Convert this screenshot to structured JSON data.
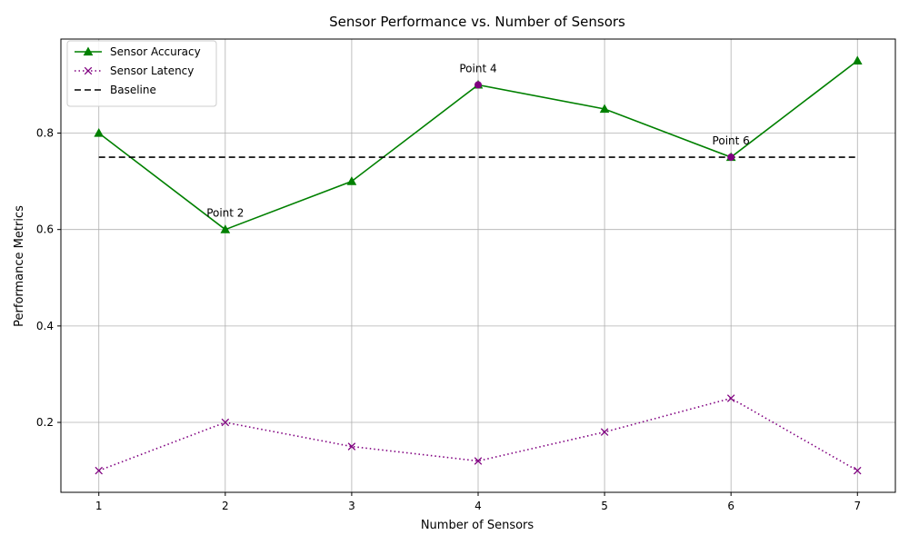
{
  "chart_data": {
    "type": "line",
    "title": "Sensor Performance vs. Number of Sensors",
    "xlabel": "Number of Sensors",
    "ylabel": "Performance Metrics",
    "x": [
      1,
      2,
      3,
      4,
      5,
      6,
      7
    ],
    "xlim": [
      0.7,
      7.3
    ],
    "ylim": [
      0.055,
      0.995
    ],
    "xticks": [
      "1",
      "2",
      "3",
      "4",
      "5",
      "6",
      "7"
    ],
    "yticks": [
      "0.2",
      "0.4",
      "0.6",
      "0.8"
    ],
    "ytick_values": [
      0.2,
      0.4,
      0.6,
      0.8
    ],
    "grid": true,
    "legend_position": "top-left",
    "series": [
      {
        "name": "Sensor Accuracy",
        "values": [
          0.8,
          0.6,
          0.7,
          0.9,
          0.85,
          0.75,
          0.95
        ],
        "color": "#008000",
        "line_style": "solid",
        "marker": "triangle"
      },
      {
        "name": "Sensor Latency",
        "values": [
          0.1,
          0.2,
          0.15,
          0.12,
          0.18,
          0.25,
          0.1
        ],
        "color": "#800080",
        "line_style": "dotted",
        "marker": "x"
      },
      {
        "name": "Baseline",
        "values": [
          0.75,
          0.75,
          0.75,
          0.75,
          0.75,
          0.75,
          0.75
        ],
        "color": "#000000",
        "line_style": "dashed",
        "marker": "none"
      }
    ],
    "annotations": [
      {
        "text": "Point 2",
        "x": 2,
        "y": 0.6
      },
      {
        "text": "Point 4",
        "x": 4,
        "y": 0.9
      },
      {
        "text": "Point 6",
        "x": 6,
        "y": 0.75
      }
    ],
    "highlight_points": [
      {
        "x": 4,
        "y": 0.9,
        "color": "#800080"
      },
      {
        "x": 6,
        "y": 0.75,
        "color": "#800080"
      }
    ]
  }
}
